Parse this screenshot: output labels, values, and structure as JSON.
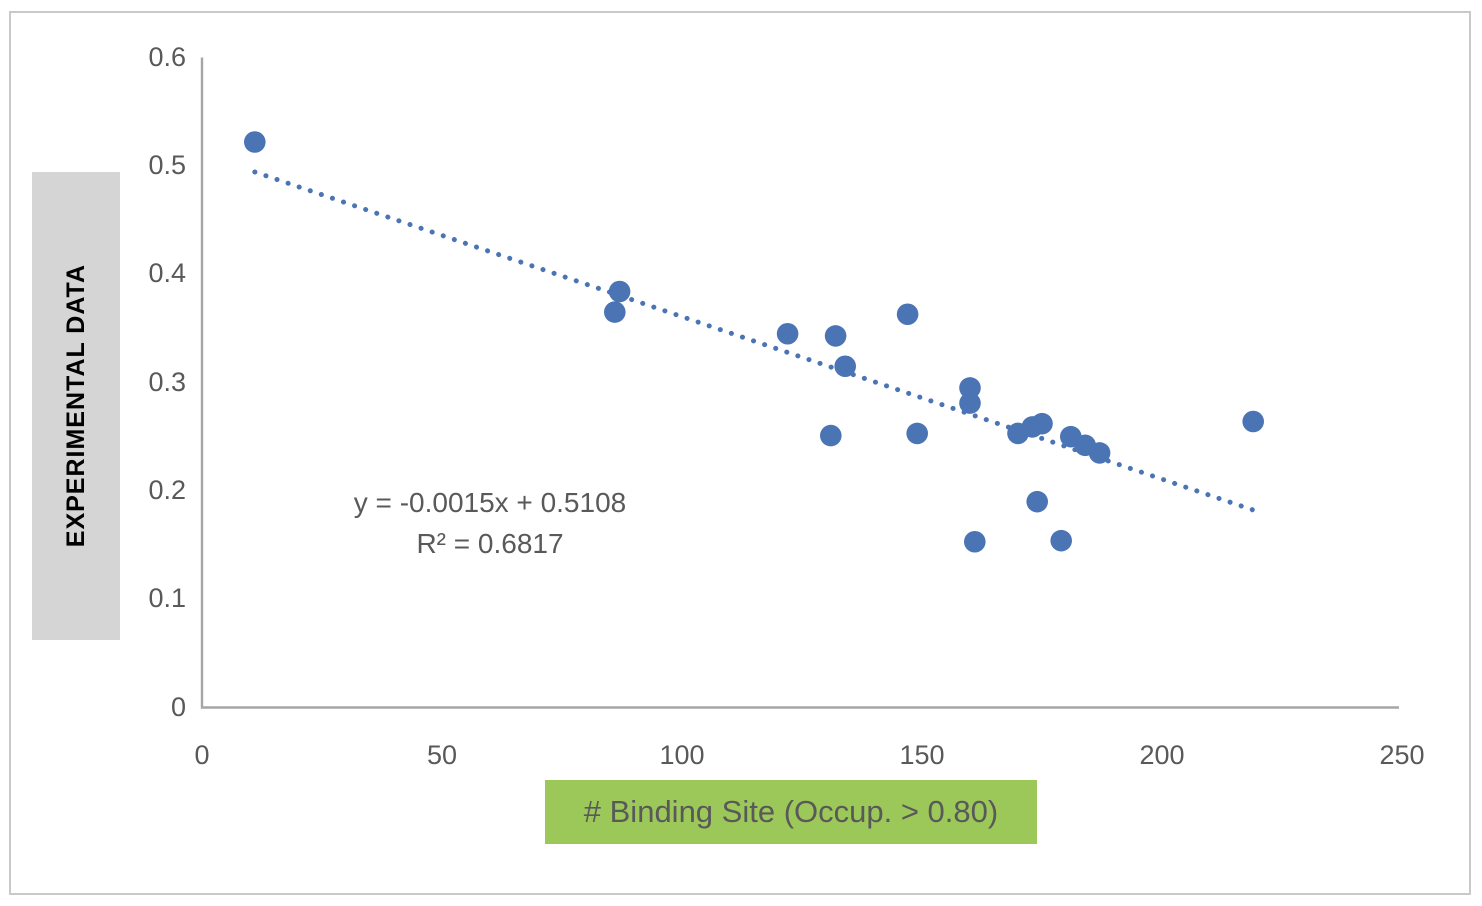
{
  "chart_data": {
    "type": "scatter",
    "title": "",
    "xlabel": "# Binding Site (Occup. > 0.80)",
    "ylabel": "EXPERIMENTAL DATA",
    "xlim": [
      0,
      250
    ],
    "ylim": [
      0,
      0.6
    ],
    "grid": false,
    "legend": false,
    "x_ticks": {
      "values": [
        0,
        50,
        100,
        150,
        200,
        250
      ],
      "labels": [
        "0",
        "50",
        "100",
        "150",
        "200",
        "250"
      ]
    },
    "y_ticks": {
      "values": [
        0,
        0.1,
        0.2,
        0.3,
        0.4,
        0.5,
        0.6
      ],
      "labels": [
        "0",
        "0.1",
        "0.2",
        "0.3",
        "0.4",
        "0.5",
        "0.6"
      ]
    },
    "series": [
      {
        "name": "Experimental data",
        "points": [
          [
            11,
            0.522
          ],
          [
            86,
            0.365
          ],
          [
            87,
            0.384
          ],
          [
            122,
            0.345
          ],
          [
            131,
            0.251
          ],
          [
            132,
            0.343
          ],
          [
            134,
            0.315
          ],
          [
            147,
            0.363
          ],
          [
            149,
            0.253
          ],
          [
            160,
            0.295
          ],
          [
            160,
            0.281
          ],
          [
            161,
            0.153
          ],
          [
            170,
            0.253
          ],
          [
            173,
            0.259
          ],
          [
            175,
            0.262
          ],
          [
            181,
            0.25
          ],
          [
            184,
            0.242
          ],
          [
            187,
            0.235
          ],
          [
            174,
            0.19
          ],
          [
            179,
            0.154
          ],
          [
            219,
            0.264
          ]
        ]
      }
    ],
    "trendline": {
      "type": "linear",
      "slope": -0.0015,
      "intercept": 0.5108,
      "r_squared": 0.6817,
      "x_start": 11,
      "x_end": 219,
      "line_style": "dotted"
    },
    "annotation": {
      "line1": "y = -0.0015x + 0.5108",
      "line2": "R² = 0.6817"
    },
    "colors": {
      "marker": "#4B74B5",
      "trendline": "#4B74B5",
      "axis": "#A6A6A6",
      "tick_text": "#595959",
      "annotation_text": "#595959",
      "ylabel_bg": "#D5D5D5",
      "ylabel_text": "#000000",
      "xlabel_bg": "#9CC85A",
      "xlabel_text": "#595959",
      "frame_border": "#C9C9C9",
      "background": "#FFFFFF"
    }
  }
}
